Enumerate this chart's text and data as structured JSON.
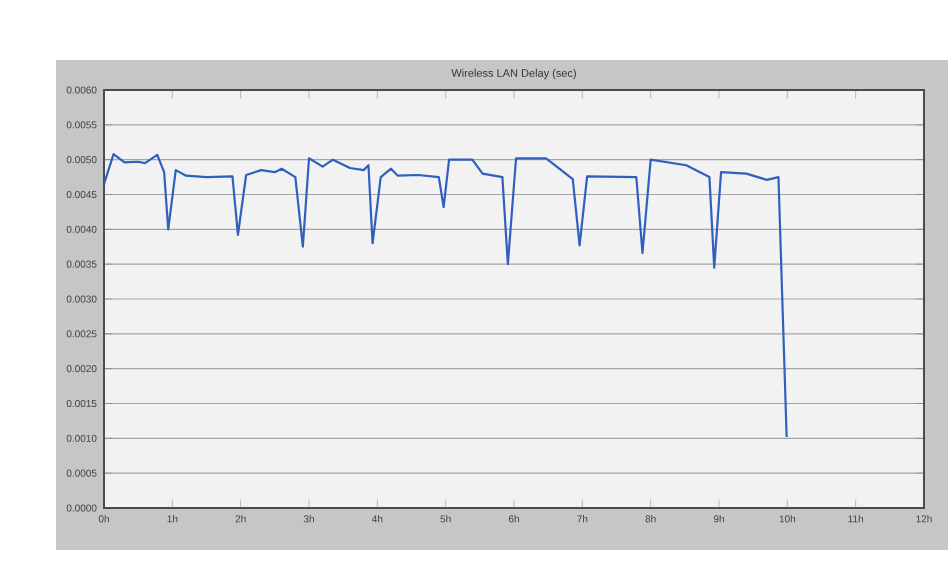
{
  "chart_data": {
    "type": "line",
    "title": "Wireless LAN Delay (sec)",
    "grid": "y",
    "xlim": [
      0,
      12
    ],
    "ylim": [
      0,
      0.006
    ],
    "xticks": [
      {
        "value": 0,
        "label": "0h"
      },
      {
        "value": 1,
        "label": "1h"
      },
      {
        "value": 2,
        "label": "2h"
      },
      {
        "value": 3,
        "label": "3h"
      },
      {
        "value": 4,
        "label": "4h"
      },
      {
        "value": 5,
        "label": "5h"
      },
      {
        "value": 6,
        "label": "6h"
      },
      {
        "value": 7,
        "label": "7h"
      },
      {
        "value": 8,
        "label": "8h"
      },
      {
        "value": 9,
        "label": "9h"
      },
      {
        "value": 10,
        "label": "10h"
      },
      {
        "value": 11,
        "label": "11h"
      },
      {
        "value": 12,
        "label": "12h"
      }
    ],
    "yticks": [
      {
        "value": 0,
        "label": "0.0000"
      },
      {
        "value": 0.0005,
        "label": "0.0005"
      },
      {
        "value": 0.001,
        "label": "0.0010"
      },
      {
        "value": 0.0015,
        "label": "0.0015"
      },
      {
        "value": 0.002,
        "label": "0.0020"
      },
      {
        "value": 0.0025,
        "label": "0.0025"
      },
      {
        "value": 0.003,
        "label": "0.0030"
      },
      {
        "value": 0.0035,
        "label": "0.0035"
      },
      {
        "value": 0.004,
        "label": "0.0040"
      },
      {
        "value": 0.0045,
        "label": "0.0045"
      },
      {
        "value": 0.005,
        "label": "0.0050"
      },
      {
        "value": 0.0055,
        "label": "0.0055"
      },
      {
        "value": 0.006,
        "label": "0.0060"
      }
    ],
    "series": [
      {
        "color": "#2f5fbf",
        "x": [
          0,
          0.14,
          0.3,
          0.5,
          0.6,
          0.78,
          0.88,
          0.94,
          1.05,
          1.2,
          1.5,
          1.88,
          1.96,
          2.08,
          2.3,
          2.5,
          2.6,
          2.8,
          2.91,
          3.0,
          3.2,
          3.35,
          3.6,
          3.8,
          3.87,
          3.93,
          4.05,
          4.2,
          4.3,
          4.6,
          4.9,
          4.97,
          5.05,
          5.2,
          5.39,
          5.54,
          5.83,
          5.91,
          6.03,
          6.47,
          6.86,
          6.96,
          7.07,
          7.79,
          7.88,
          8.0,
          8.52,
          8.86,
          8.93,
          9.03,
          9.4,
          9.7,
          9.87,
          9.99
        ],
        "values": [
          0.00465,
          0.00508,
          0.00496,
          0.00497,
          0.00495,
          0.00507,
          0.00482,
          0.004,
          0.00485,
          0.00477,
          0.00475,
          0.00476,
          0.00392,
          0.00478,
          0.00485,
          0.00482,
          0.00487,
          0.00475,
          0.00375,
          0.00502,
          0.0049,
          0.005,
          0.00488,
          0.00485,
          0.00492,
          0.0038,
          0.00475,
          0.00487,
          0.00477,
          0.00478,
          0.00475,
          0.00432,
          0.005,
          0.005,
          0.005,
          0.0048,
          0.00475,
          0.0035,
          0.00502,
          0.00502,
          0.00472,
          0.00377,
          0.00476,
          0.00475,
          0.00366,
          0.005,
          0.00492,
          0.00475,
          0.00345,
          0.00482,
          0.0048,
          0.00471,
          0.00475,
          0.00102
        ]
      }
    ]
  }
}
